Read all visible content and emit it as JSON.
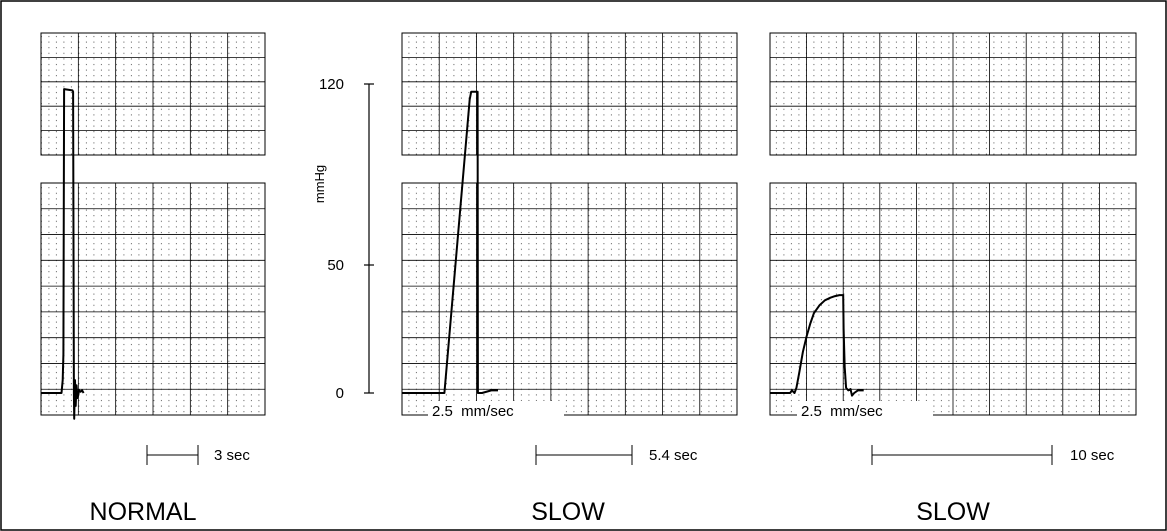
{
  "chart_data": {
    "type": "line",
    "y_axis": {
      "label": "mmHg",
      "ticks": [
        0,
        50,
        120
      ],
      "range": [
        -5,
        125
      ]
    },
    "panels": [
      {
        "label": "NORMAL",
        "duration_label": "3 sec",
        "paper_speed_label": "",
        "trace": [
          [
            0,
            0
          ],
          [
            0.55,
            0
          ],
          [
            0.58,
            5
          ],
          [
            0.6,
            15
          ],
          [
            0.62,
            118
          ],
          [
            0.84,
            117.5
          ],
          [
            0.86,
            117
          ],
          [
            0.88,
            0
          ],
          [
            0.89,
            -10
          ],
          [
            0.91,
            5
          ],
          [
            0.93,
            -5
          ],
          [
            0.95,
            3
          ],
          [
            0.98,
            -2
          ],
          [
            1.02,
            1
          ],
          [
            1.06,
            0.5
          ],
          [
            1.1,
            1
          ],
          [
            1.14,
            0
          ]
        ]
      },
      {
        "label": "SLOW",
        "duration_label": "5.4 sec",
        "paper_speed_label": "2.5  mm/sec",
        "trace": [
          [
            0,
            0
          ],
          [
            1.14,
            0
          ],
          [
            1.82,
            114
          ],
          [
            1.86,
            117
          ],
          [
            2.03,
            117
          ],
          [
            2.04,
            0
          ],
          [
            2.15,
            0
          ],
          [
            2.4,
            1
          ],
          [
            2.58,
            1
          ]
        ]
      },
      {
        "label": "SLOW",
        "duration_label": "10 sec",
        "paper_speed_label": "2.5  mm/sec",
        "trace": [
          [
            0,
            0
          ],
          [
            0.55,
            0
          ],
          [
            0.6,
            1
          ],
          [
            0.67,
            0
          ],
          [
            0.72,
            2
          ],
          [
            0.8,
            8
          ],
          [
            0.9,
            16
          ],
          [
            1.0,
            22
          ],
          [
            1.1,
            27
          ],
          [
            1.2,
            31
          ],
          [
            1.35,
            34
          ],
          [
            1.5,
            36
          ],
          [
            1.65,
            37
          ],
          [
            1.75,
            37.5
          ],
          [
            1.9,
            38
          ],
          [
            2.0,
            38
          ],
          [
            2.01,
            25
          ],
          [
            2.04,
            10
          ],
          [
            2.08,
            2
          ],
          [
            2.14,
            1
          ],
          [
            2.2,
            1.5
          ],
          [
            2.24,
            -1
          ],
          [
            2.3,
            0
          ],
          [
            2.4,
            1
          ],
          [
            2.5,
            1
          ],
          [
            2.56,
            1
          ]
        ]
      }
    ]
  }
}
